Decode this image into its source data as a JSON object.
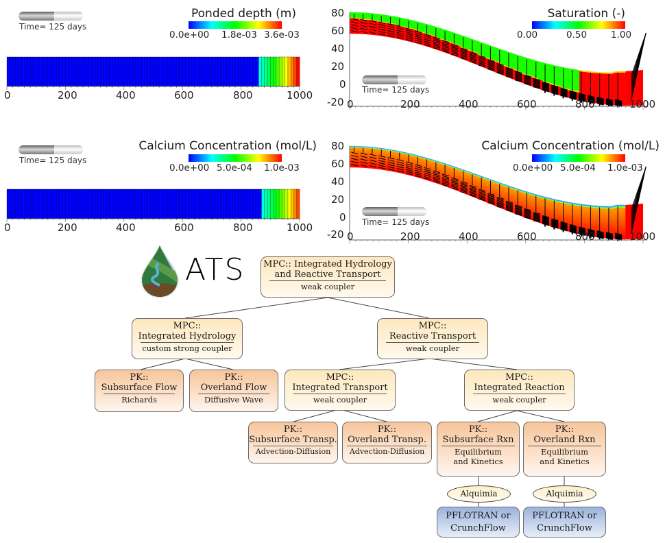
{
  "panels": {
    "ponded_depth": {
      "title": "Ponded depth (m)",
      "time_label": "Time= 125 days",
      "colorbar": {
        "min": "0.0e+00",
        "mid": "1.8e-03",
        "max": "3.6e-03"
      },
      "x_ticks": [
        "0",
        "200",
        "400",
        "600",
        "800",
        "1000"
      ]
    },
    "saturation": {
      "title": "Saturation (-)",
      "time_label": "Time= 125 days",
      "colorbar": {
        "min": "0.00",
        "mid": "0.50",
        "max": "1.00"
      },
      "x_ticks": [
        "0",
        "200",
        "400",
        "600",
        "800",
        "1000"
      ],
      "y_ticks": [
        "80",
        "60",
        "40",
        "20",
        "0",
        "-20"
      ]
    },
    "calcium_surface": {
      "title": "Calcium Concentration (mol/L)",
      "time_label": "Time= 125 days",
      "colorbar": {
        "min": "0.0e+00",
        "mid": "5.0e-04",
        "max": "1.0e-03"
      },
      "x_ticks": [
        "0",
        "200",
        "400",
        "600",
        "800",
        "1000"
      ]
    },
    "calcium_subsurface": {
      "title": "Calcium Concentration (mol/L)",
      "time_label": "Time= 125 days",
      "colorbar": {
        "min": "0.0e+00",
        "mid": "5.0e-04",
        "max": "1.0e-03"
      },
      "x_ticks": [
        "0",
        "200",
        "400",
        "600",
        "800",
        "1000"
      ],
      "y_ticks": [
        "80",
        "60",
        "40",
        "20",
        "0",
        "-20"
      ]
    }
  },
  "logo": {
    "text": "ATS",
    "color": "#6fa3cf"
  },
  "diagram": {
    "root": {
      "title": "MPC:: Integrated Hydrology",
      "title2": "and Reactive Transport",
      "sub": "weak coupler"
    },
    "hydrology": {
      "title": "MPC::",
      "title2": "Integrated Hydrology",
      "sub": "custom strong coupler"
    },
    "reactive": {
      "title": "MPC::",
      "title2": "Reactive Transport",
      "sub": "weak coupler"
    },
    "subsurface_flow": {
      "title": "PK::",
      "title2": "Subsurface Flow",
      "sub": "Richards"
    },
    "overland_flow": {
      "title": "PK::",
      "title2": "Overland Flow",
      "sub": "Diffusive Wave"
    },
    "transport": {
      "title": "MPC::",
      "title2": "Integrated Transport",
      "sub": "weak coupler"
    },
    "reaction": {
      "title": "MPC::",
      "title2": "Integrated Reaction",
      "sub": "weak coupler"
    },
    "subsurface_transp": {
      "title": "PK::",
      "title2": "Subsurface Transp.",
      "sub": "Advection-Diffusion"
    },
    "overland_transp": {
      "title": "PK::",
      "title2": "Overland Transp.",
      "sub": "Advection-Diffusion"
    },
    "subsurface_rxn": {
      "title": "PK::",
      "title2": "Subsurface Rxn",
      "sub": "Equilibrium",
      "sub2": "and Kinetics"
    },
    "overland_rxn": {
      "title": "PK::",
      "title2": "Overland Rxn",
      "sub": "Equilibrium",
      "sub2": "and Kinetics"
    },
    "alquimia_left": {
      "label": "Alquimia"
    },
    "alquimia_right": {
      "label": "Alquimia"
    },
    "engine_left": {
      "line1": "PFLOTRAN or",
      "line2": "CrunchFlow"
    },
    "engine_right": {
      "line1": "PFLOTRAN or",
      "line2": "CrunchFlow"
    }
  }
}
